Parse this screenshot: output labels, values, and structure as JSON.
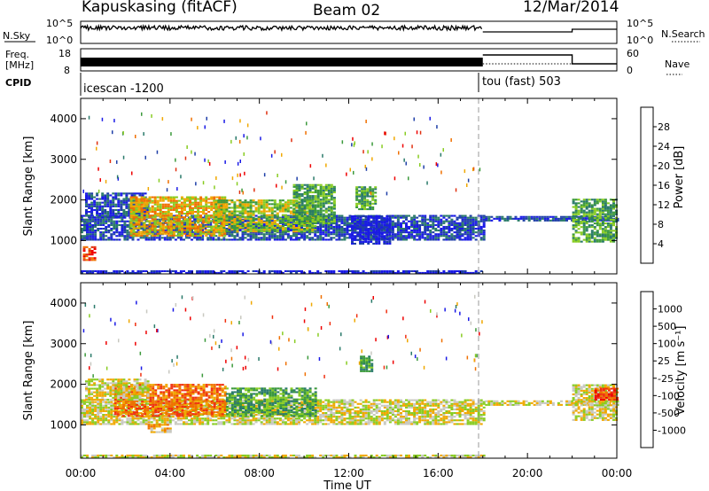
{
  "header": {
    "station": "Kapuskasing (fitACF)",
    "beam": "Beam 02",
    "date": "12/Mar/2014"
  },
  "summary_panels": {
    "nsky_label": "N.Sky",
    "nsearch_label": "N.Search",
    "nsky_ticks": [
      "10^5",
      "10^0"
    ],
    "nsearch_ticks": [
      "10^5",
      "10^0"
    ],
    "freq_label_line1": "Freq.",
    "freq_label_line2": "[MHz]",
    "freq_ticks": [
      "18",
      "8"
    ],
    "nave_label": "Nave",
    "nave_ticks": [
      "60",
      "0"
    ],
    "cpid_label": "CPID",
    "cpid_segments": [
      {
        "name": "icescan -1200",
        "start_h": 0,
        "end_h": 18
      },
      {
        "name": "tou (fast) 503",
        "start_h": 18,
        "end_h": 24
      }
    ]
  },
  "axes": {
    "ylabel": "Slant Range [km]",
    "xlabel": "Time UT",
    "y_ticks": [
      "1000",
      "2000",
      "3000",
      "4000"
    ],
    "x_ticks": [
      "00:00",
      "04:00",
      "08:00",
      "12:00",
      "16:00",
      "20:00",
      "00:00"
    ]
  },
  "chart_data": [
    {
      "type": "heatmap",
      "parameter": "Power",
      "colorbar_label": "Power [dB]",
      "colorbar_ticks": [
        "4",
        "8",
        "12",
        "16",
        "20",
        "24",
        "28"
      ],
      "colors": [
        "#1a1ae6",
        "#1f3fa8",
        "#2a7a6a",
        "#3c9a3c",
        "#88cc22",
        "#f0a800",
        "#f07000",
        "#e03010",
        "#ee0000"
      ],
      "x": {
        "label": "Time UT",
        "unit": "hours",
        "range": [
          0,
          24
        ]
      },
      "y": {
        "label": "Slant Range [km]",
        "unit": "km",
        "range": [
          180,
          4500
        ]
      },
      "regions": [
        {
          "t": [
            0.0,
            18.0
          ],
          "r": [
            1000,
            1600
          ],
          "level": 1
        },
        {
          "t": [
            0.2,
            3.0
          ],
          "r": [
            1550,
            2150
          ],
          "level": 1
        },
        {
          "t": [
            2.2,
            6.5
          ],
          "r": [
            1100,
            2050
          ],
          "level": 5
        },
        {
          "t": [
            6.0,
            10.5
          ],
          "r": [
            1200,
            2000
          ],
          "level": 4
        },
        {
          "t": [
            9.5,
            11.3
          ],
          "r": [
            1400,
            2350
          ],
          "level": 3
        },
        {
          "t": [
            12.3,
            13.2
          ],
          "r": [
            1750,
            2300
          ],
          "level": 3
        },
        {
          "t": [
            0.1,
            0.7
          ],
          "r": [
            500,
            830
          ],
          "level": 7
        },
        {
          "t": [
            18.1,
            24.0
          ],
          "r": [
            1470,
            1580
          ],
          "level": 1
        },
        {
          "t": [
            22.0,
            24.0
          ],
          "r": [
            950,
            2000
          ],
          "level": 3
        },
        {
          "t": [
            0.0,
            18.0
          ],
          "r": [
            180,
            240
          ],
          "level": 0
        },
        {
          "t": [
            12.1,
            13.8
          ],
          "r": [
            900,
            1600
          ],
          "level": 0
        }
      ]
    },
    {
      "type": "heatmap",
      "parameter": "Velocity",
      "colorbar_label": "Velocity [m s⁻¹]",
      "colorbar_ticks": [
        "-1000",
        "-500",
        "-100",
        "-25",
        "25",
        "100",
        "500",
        "1000"
      ],
      "colors": [
        "#ee0000",
        "#f03010",
        "#f07000",
        "#f0a800",
        "#c8c8c0",
        "#88cc22",
        "#3c9a3c",
        "#2a7a6a",
        "#1a1ae6"
      ],
      "x": {
        "label": "Time UT",
        "unit": "hours",
        "range": [
          0,
          24
        ]
      },
      "y": {
        "label": "Slant Range [km]",
        "unit": "km",
        "range": [
          180,
          4500
        ]
      },
      "regions": [
        {
          "t": [
            0.0,
            18.0
          ],
          "r": [
            1000,
            1600
          ],
          "level": 4
        },
        {
          "t": [
            1.5,
            6.5
          ],
          "r": [
            1200,
            2000
          ],
          "level": 2
        },
        {
          "t": [
            6.5,
            10.5
          ],
          "r": [
            1200,
            1900
          ],
          "level": 6
        },
        {
          "t": [
            3.0,
            4.0
          ],
          "r": [
            800,
            1000
          ],
          "level": 3
        },
        {
          "t": [
            0.2,
            3.0
          ],
          "r": [
            1600,
            2100
          ],
          "level": 4
        },
        {
          "t": [
            18.1,
            24.0
          ],
          "r": [
            1470,
            1580
          ],
          "level": 4
        },
        {
          "t": [
            22.0,
            24.0
          ],
          "r": [
            1100,
            2000
          ],
          "level": 4
        },
        {
          "t": [
            23.0,
            24.0
          ],
          "r": [
            1600,
            1900
          ],
          "level": 1
        },
        {
          "t": [
            12.5,
            13.0
          ],
          "r": [
            2300,
            2700
          ],
          "level": 6
        },
        {
          "t": [
            0.0,
            18.0
          ],
          "r": [
            180,
            240
          ],
          "level": 4
        }
      ]
    }
  ]
}
